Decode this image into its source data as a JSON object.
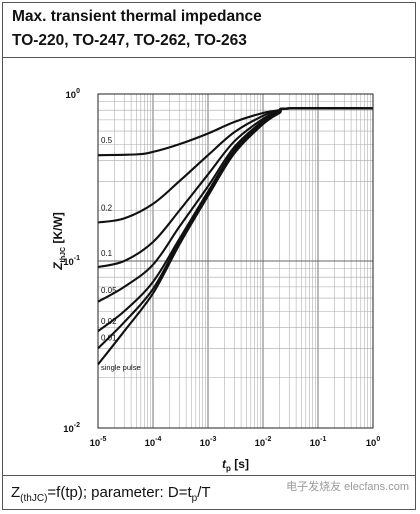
{
  "header": {
    "title": "Max. transient thermal impedance",
    "subtitle": "TO-220, TO-247, TO-262, TO-263"
  },
  "footer": {
    "z_symbol": "Z",
    "z_sub": "(thJC)",
    "formula_rest": "=f(tp); parameter: D=t",
    "p_sub": "p",
    "formula_end": "/T",
    "watermark": "电子发烧友 elecfans.com"
  },
  "chart_data": {
    "type": "line",
    "title": "Max. transient thermal impedance",
    "subtitle": "TO-220, TO-247, TO-262, TO-263",
    "xlabel": "t_p [s]",
    "ylabel": "Z_thJC [K/W]",
    "x_scale": "log",
    "y_scale": "log",
    "xlim": [
      1e-05,
      1
    ],
    "ylim": [
      0.01,
      1
    ],
    "grid": true,
    "x_ticks": [
      {
        "base": "10",
        "exp": "-5",
        "value": 1e-05
      },
      {
        "base": "10",
        "exp": "-4",
        "value": 0.0001
      },
      {
        "base": "10",
        "exp": "-3",
        "value": 0.001
      },
      {
        "base": "10",
        "exp": "-2",
        "value": 0.01
      },
      {
        "base": "10",
        "exp": "-1",
        "value": 0.1
      },
      {
        "base": "10",
        "exp": "0",
        "value": 1
      }
    ],
    "y_ticks": [
      {
        "base": "10",
        "exp": "-2",
        "value": 0.01
      },
      {
        "base": "10",
        "exp": "-1",
        "value": 0.1
      },
      {
        "base": "10",
        "exp": "0",
        "value": 1
      }
    ],
    "series": [
      {
        "name": "0.5",
        "x": [
          1e-05,
          5e-05,
          0.0001,
          0.0003,
          0.001,
          0.003,
          0.01,
          0.02,
          0.03,
          1
        ],
        "y": [
          0.43,
          0.435,
          0.45,
          0.5,
          0.58,
          0.68,
          0.77,
          0.8,
          0.82,
          0.82
        ]
      },
      {
        "name": "0.2",
        "x": [
          1e-05,
          3e-05,
          0.0001,
          0.0003,
          0.001,
          0.003,
          0.01,
          0.02,
          0.03,
          1
        ],
        "y": [
          0.17,
          0.18,
          0.22,
          0.3,
          0.43,
          0.59,
          0.74,
          0.8,
          0.82,
          0.82
        ]
      },
      {
        "name": "0.1",
        "x": [
          1e-05,
          3e-05,
          0.0001,
          0.0003,
          0.001,
          0.003,
          0.01,
          0.02,
          0.03,
          1
        ],
        "y": [
          0.092,
          0.1,
          0.13,
          0.2,
          0.33,
          0.52,
          0.71,
          0.79,
          0.82,
          0.82
        ]
      },
      {
        "name": "0.05",
        "x": [
          1e-05,
          3e-05,
          0.0001,
          0.0003,
          0.001,
          0.003,
          0.01,
          0.02,
          0.03,
          1
        ],
        "y": [
          0.057,
          0.07,
          0.095,
          0.16,
          0.28,
          0.48,
          0.69,
          0.79,
          0.82,
          0.82
        ]
      },
      {
        "name": "0.02",
        "x": [
          1e-05,
          3e-05,
          0.0001,
          0.0003,
          0.001,
          0.003,
          0.01,
          0.02,
          0.03,
          1
        ],
        "y": [
          0.038,
          0.05,
          0.075,
          0.135,
          0.26,
          0.46,
          0.68,
          0.78,
          0.82,
          0.82
        ]
      },
      {
        "name": "0.01",
        "x": [
          1e-05,
          3e-05,
          0.0001,
          0.0003,
          0.001,
          0.003,
          0.01,
          0.02,
          0.03,
          1
        ],
        "y": [
          0.03,
          0.043,
          0.068,
          0.13,
          0.25,
          0.45,
          0.67,
          0.78,
          0.82,
          0.82
        ]
      },
      {
        "name": "single pulse",
        "x": [
          1e-05,
          3e-05,
          0.0001,
          0.0003,
          0.001,
          0.003,
          0.01,
          0.02,
          0.03,
          1
        ],
        "y": [
          0.024,
          0.038,
          0.064,
          0.125,
          0.245,
          0.44,
          0.66,
          0.77,
          0.82,
          0.82
        ]
      }
    ]
  }
}
